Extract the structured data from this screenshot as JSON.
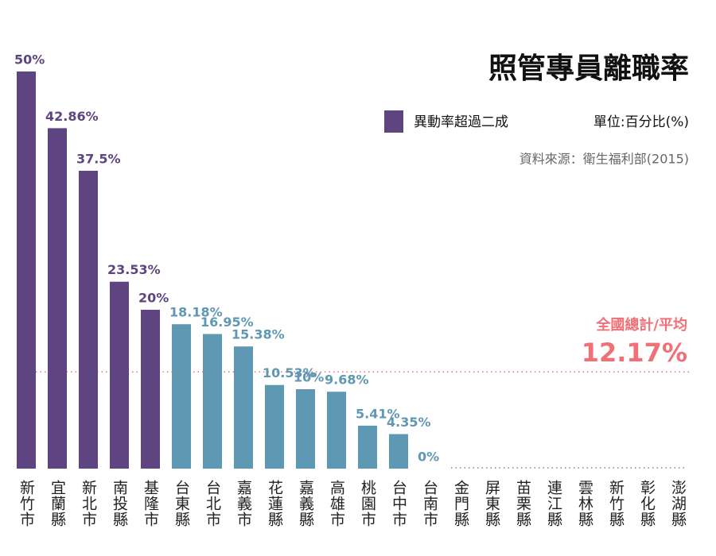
{
  "chart_data": {
    "type": "bar",
    "title": "照管專員離職率",
    "legend_label": "異動率超過二成",
    "unit": "單位:百分比(%)",
    "source": "資料來源：衛生福利部(2015)",
    "categories": [
      "新竹市",
      "宜蘭縣",
      "新北市",
      "南投縣",
      "基隆市",
      "台東縣",
      "台北市",
      "嘉義市",
      "花蓮縣",
      "嘉義縣",
      "高雄市",
      "桃園市",
      "台中市",
      "台南市",
      "金門縣",
      "屏東縣",
      "苗栗縣",
      "連江縣",
      "雲林縣",
      "新竹縣",
      "彰化縣",
      "澎湖縣"
    ],
    "values": [
      50,
      42.86,
      37.5,
      23.53,
      20,
      18.18,
      16.95,
      15.38,
      10.53,
      10,
      9.68,
      5.41,
      4.35,
      0,
      null,
      null,
      null,
      null,
      null,
      null,
      null,
      null
    ],
    "value_labels": [
      "50%",
      "42.86%",
      "37.5%",
      "23.53%",
      "20%",
      "18.18%",
      "16.95%",
      "15.38%",
      "10.53%",
      "10%",
      "9.68%",
      "5.41%",
      "4.35%",
      "0%",
      null,
      null,
      null,
      null,
      null,
      null,
      null,
      null
    ],
    "colors": [
      "#5e4480",
      "#5e4480",
      "#5e4480",
      "#5e4480",
      "#5e4480",
      "#5f98b3",
      "#5f98b3",
      "#5f98b3",
      "#5f98b3",
      "#5f98b3",
      "#5f98b3",
      "#5f98b3",
      "#5f98b3",
      "#5f98b3",
      "#5f98b3",
      "#5f98b3",
      "#5f98b3",
      "#5f98b3",
      "#5f98b3",
      "#5f98b3",
      "#5f98b3",
      "#5f98b3"
    ],
    "legend_color": "#5e4480",
    "average": {
      "name": "全國總計/平均",
      "value": 12.17,
      "label": "12.17%",
      "color": "#f07078"
    },
    "ylim": [
      0,
      50
    ]
  }
}
